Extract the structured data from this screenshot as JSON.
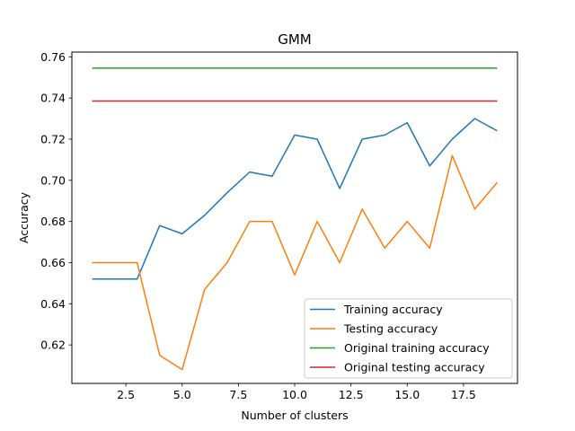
{
  "chart_data": {
    "type": "line",
    "title": "GMM",
    "xlabel": "Number of clusters",
    "ylabel": "Accuracy",
    "xlim": [
      0.1,
      19.9
    ],
    "ylim": [
      0.6013,
      0.7623
    ],
    "xticks": [
      2.5,
      5.0,
      7.5,
      10.0,
      12.5,
      15.0,
      17.5
    ],
    "xtick_labels": [
      "2.5",
      "5.0",
      "7.5",
      "10.0",
      "12.5",
      "15.0",
      "17.5"
    ],
    "yticks": [
      0.62,
      0.64,
      0.66,
      0.68,
      0.7,
      0.72,
      0.74,
      0.76
    ],
    "ytick_labels": [
      "0.62",
      "0.64",
      "0.66",
      "0.68",
      "0.70",
      "0.72",
      "0.74",
      "0.76"
    ],
    "grid": false,
    "legend_position": "bottom-right",
    "x": [
      1,
      2,
      3,
      4,
      5,
      6,
      7,
      8,
      9,
      10,
      11,
      12,
      13,
      14,
      15,
      16,
      17,
      18,
      19
    ],
    "series": [
      {
        "name": "Training accuracy",
        "color": "#1f77b4",
        "values": [
          0.652,
          0.652,
          0.652,
          0.678,
          0.674,
          0.683,
          0.694,
          0.704,
          0.702,
          0.722,
          0.72,
          0.696,
          0.72,
          0.722,
          0.728,
          0.707,
          0.72,
          0.73,
          0.724
        ]
      },
      {
        "name": "Testing accuracy",
        "color": "#ff7f0e",
        "values": [
          0.66,
          0.66,
          0.66,
          0.615,
          0.608,
          0.647,
          0.66,
          0.68,
          0.68,
          0.654,
          0.68,
          0.66,
          0.686,
          0.667,
          0.68,
          0.667,
          0.712,
          0.686,
          0.699
        ]
      },
      {
        "name": "Original training accuracy",
        "color": "#2ca02c",
        "values": [
          0.7545,
          0.7545,
          0.7545,
          0.7545,
          0.7545,
          0.7545,
          0.7545,
          0.7545,
          0.7545,
          0.7545,
          0.7545,
          0.7545,
          0.7545,
          0.7545,
          0.7545,
          0.7545,
          0.7545,
          0.7545,
          0.7545
        ]
      },
      {
        "name": "Original testing accuracy",
        "color": "#d62728",
        "values": [
          0.7385,
          0.7385,
          0.7385,
          0.7385,
          0.7385,
          0.7385,
          0.7385,
          0.7385,
          0.7385,
          0.7385,
          0.7385,
          0.7385,
          0.7385,
          0.7385,
          0.7385,
          0.7385,
          0.7385,
          0.7385,
          0.7385
        ]
      }
    ]
  }
}
